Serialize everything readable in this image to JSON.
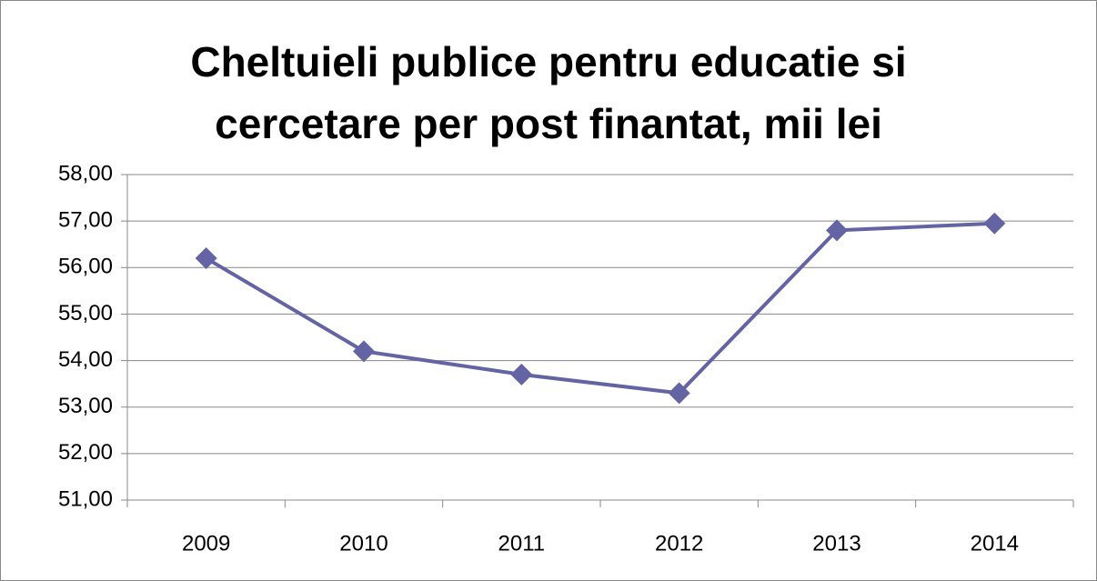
{
  "chart_data": {
    "type": "line",
    "title": "Cheltuieli publice pentru educatie si\ncercetare per post finantat, mii lei",
    "categories": [
      "2009",
      "2010",
      "2011",
      "2012",
      "2013",
      "2014"
    ],
    "series": [
      {
        "name": "Cheltuieli",
        "color": "#6464a4",
        "values": [
          56.2,
          54.2,
          53.7,
          53.3,
          56.8,
          56.95
        ]
      }
    ],
    "ylim": [
      51,
      58
    ],
    "yticks": [
      {
        "value": 51,
        "label": "51,00"
      },
      {
        "value": 52,
        "label": "52,00"
      },
      {
        "value": 53,
        "label": "53,00"
      },
      {
        "value": 54,
        "label": "54,00"
      },
      {
        "value": 55,
        "label": "55,00"
      },
      {
        "value": 56,
        "label": "56,00"
      },
      {
        "value": 57,
        "label": "57,00"
      },
      {
        "value": 58,
        "label": "58,00"
      }
    ],
    "grid": true
  }
}
